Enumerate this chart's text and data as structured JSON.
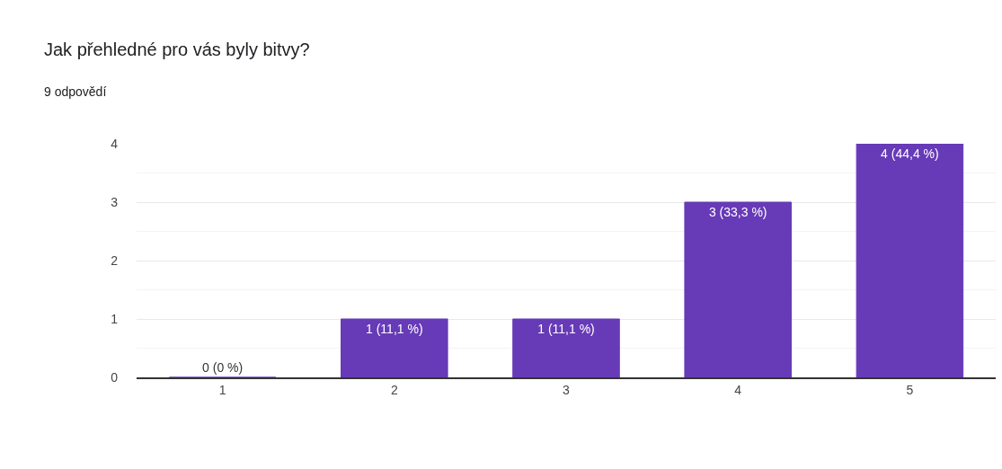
{
  "chart_data": {
    "type": "bar",
    "title": "Jak přehledné pro vás byly bitvy?",
    "subtitle": "9 odpovědí",
    "categories": [
      "1",
      "2",
      "3",
      "4",
      "5"
    ],
    "values": [
      0,
      1,
      1,
      3,
      4
    ],
    "color": "#673ab7",
    "value_labels": [
      "0 (0 %)",
      "1 (11,1 %)",
      "1 (11,1 %)",
      "3 (33,3 %)",
      "4 (44,4 %)"
    ],
    "ylim": [
      0,
      4
    ],
    "yticks": [
      0,
      1,
      2,
      3,
      4
    ],
    "grid": "y",
    "legend": false
  }
}
